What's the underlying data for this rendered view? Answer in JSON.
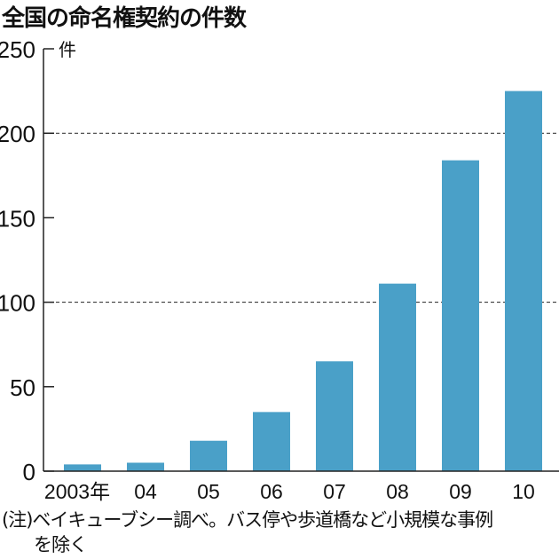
{
  "chart_data": {
    "type": "bar",
    "title": "全国の命名権契約の件数",
    "unit": "件",
    "categories": [
      "2003年",
      "04",
      "05",
      "06",
      "07",
      "08",
      "09",
      "10"
    ],
    "values": [
      4,
      5,
      18,
      35,
      65,
      111,
      184,
      225
    ],
    "ylim": [
      0,
      250
    ],
    "yticks": [
      0,
      50,
      100,
      150,
      200,
      250
    ],
    "dashed_gridlines": [
      100,
      200
    ],
    "bar_color": "#4aa0c8",
    "note": "(注)ベイキューブシー調べ。バス停や歩道橋など小規模な事例",
    "note_cont": "を除く"
  }
}
